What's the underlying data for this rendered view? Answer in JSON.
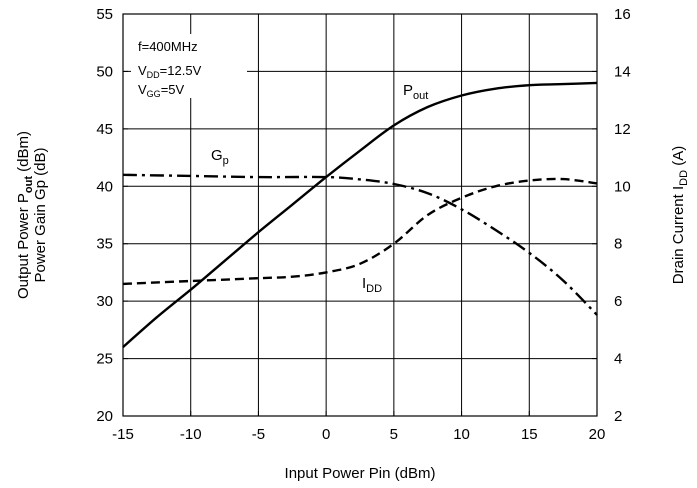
{
  "chart_data": {
    "type": "line",
    "xlabel": "Input Power Pin (dBm)",
    "ylabel_line1": "Output Power P",
    "ylabel_line1_sub": "out",
    "ylabel_line1_tail": " (dBm)",
    "ylabel_line2": "Power Gain Gp (dB)",
    "y2label": "Drain Current  I",
    "y2label_sub": "DD",
    "y2label_tail": " (A)",
    "xlim": [
      -15,
      20
    ],
    "ylim": [
      20,
      55
    ],
    "y2lim": [
      2,
      16
    ],
    "xticks": [
      "-15",
      "-10",
      "-5",
      "0",
      "5",
      "10",
      "15",
      "20"
    ],
    "yticks": [
      "20",
      "25",
      "30",
      "35",
      "40",
      "45",
      "50",
      "55"
    ],
    "y2ticks": [
      "2",
      "4",
      "6",
      "8",
      "10",
      "12",
      "14",
      "16"
    ],
    "grid": true,
    "conditions": {
      "freq": "f=400MHz",
      "vdd_main": "V",
      "vdd_sub": "DD",
      "vdd_val": "=12.5V",
      "vgg_main": "V",
      "vgg_sub": "GG",
      "vgg_val": "=5V"
    },
    "series": [
      {
        "name": "P",
        "name_sub": "out",
        "axis": "left",
        "style": "solid",
        "x": [
          -15,
          -12.5,
          -10,
          -7.5,
          -5,
          -2.5,
          0,
          2.5,
          5,
          7.5,
          10,
          12.5,
          15,
          17.5,
          20
        ],
        "y": [
          26.0,
          28.6,
          31.0,
          33.5,
          36.0,
          38.4,
          40.8,
          43.1,
          45.3,
          46.9,
          47.9,
          48.5,
          48.8,
          48.9,
          49.0
        ]
      },
      {
        "name": "G",
        "name_sub": "p",
        "axis": "left",
        "style": "dashdot",
        "x": [
          -15,
          -10,
          -5,
          0,
          2.5,
          5,
          7.5,
          10,
          12.5,
          15,
          17.5,
          20
        ],
        "y": [
          41.0,
          40.9,
          40.8,
          40.8,
          40.6,
          40.2,
          39.4,
          38.0,
          36.2,
          34.2,
          31.8,
          28.8
        ]
      },
      {
        "name": "I",
        "name_sub": "DD",
        "axis": "right",
        "style": "dashed",
        "x": [
          -15,
          -10,
          -5,
          -2.5,
          0,
          2.5,
          5,
          7.5,
          10,
          12.5,
          15,
          17.5,
          20
        ],
        "y": [
          6.6,
          6.7,
          6.8,
          6.85,
          7.0,
          7.3,
          8.0,
          9.0,
          9.6,
          10.0,
          10.2,
          10.25,
          10.1
        ]
      }
    ]
  }
}
